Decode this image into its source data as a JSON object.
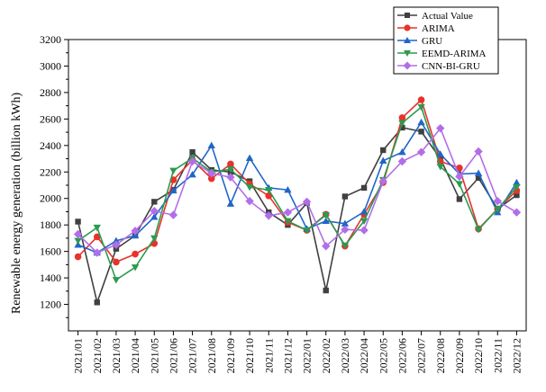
{
  "chart_data": {
    "type": "line",
    "title": "",
    "xlabel": "",
    "ylabel": "Renewable energy generation (billion kWh)",
    "ylim": [
      1000,
      3200
    ],
    "yticks": [
      1200,
      1400,
      1600,
      1800,
      2000,
      2200,
      2400,
      2600,
      2800,
      3000,
      3200
    ],
    "categories": [
      "2021/01",
      "2021/02",
      "2021/03",
      "2021/04",
      "2021/05",
      "2021/06",
      "2021/07",
      "2021/08",
      "2021/09",
      "2021/10",
      "2021/11",
      "2021/12",
      "2022/01",
      "2022/02",
      "2022/03",
      "2022/04",
      "2022/05",
      "2022/06",
      "2022/07",
      "2022/08",
      "2022/09",
      "2022/10",
      "2022/11",
      "2022/12"
    ],
    "legend_position": "top-right",
    "series": [
      {
        "name": "Actual Value",
        "color": "#404040",
        "marker": "square",
        "values": [
          1825,
          1215,
          1620,
          1720,
          1975,
          2065,
          2350,
          2215,
          2200,
          2130,
          1895,
          1800,
          1965,
          1305,
          2015,
          2080,
          2365,
          2535,
          2505,
          2300,
          1995,
          2155,
          1920,
          2025
        ]
      },
      {
        "name": "ARIMA",
        "color": "#e8322b",
        "marker": "circle",
        "values": [
          1560,
          1710,
          1520,
          1580,
          1660,
          2140,
          2290,
          2150,
          2260,
          2110,
          2020,
          1820,
          1760,
          1880,
          1640,
          1880,
          2120,
          2610,
          2745,
          2280,
          2230,
          1770,
          1920,
          2060
        ]
      },
      {
        "name": "GRU",
        "color": "#1f66c9",
        "marker": "triangle-up",
        "values": [
          1650,
          1590,
          1680,
          1720,
          1860,
          2060,
          2180,
          2400,
          1960,
          2305,
          2080,
          2065,
          1770,
          1830,
          1810,
          1900,
          2285,
          2350,
          2575,
          2335,
          2185,
          2190,
          1895,
          2120
        ]
      },
      {
        "name": "EEMD-ARIMA",
        "color": "#2c9a50",
        "marker": "triangle-down",
        "values": [
          1680,
          1780,
          1385,
          1480,
          1700,
          2210,
          2305,
          2200,
          2220,
          2085,
          2065,
          1830,
          1760,
          1875,
          1645,
          1830,
          2140,
          2570,
          2690,
          2240,
          2110,
          1765,
          1920,
          2085
        ]
      },
      {
        "name": "CNN-BI-GRU",
        "color": "#b26ee8",
        "marker": "diamond",
        "values": [
          1730,
          1590,
          1650,
          1755,
          1905,
          1875,
          2280,
          2190,
          2160,
          1980,
          1870,
          1895,
          1975,
          1640,
          1765,
          1760,
          2130,
          2280,
          2350,
          2530,
          2165,
          2355,
          1980,
          1895
        ]
      }
    ]
  }
}
